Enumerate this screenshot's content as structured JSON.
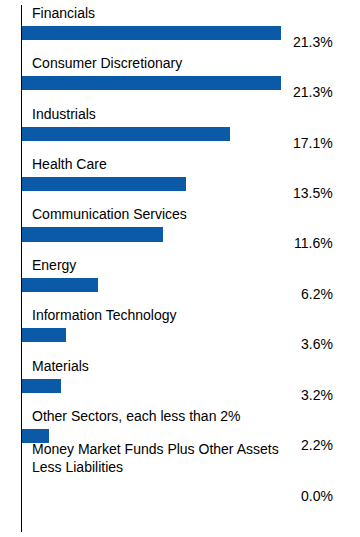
{
  "chart_data": {
    "type": "bar",
    "orientation": "horizontal",
    "categories": [
      "Financials",
      "Consumer Discretionary",
      "Industrials",
      "Health Care",
      "Communication Services",
      "Energy",
      "Information Technology",
      "Materials",
      "Other Sectors, each less than 2%",
      "Money Market Funds Plus Other Assets\nLess Liabilities"
    ],
    "values": [
      21.3,
      21.3,
      17.1,
      13.5,
      11.6,
      6.2,
      3.6,
      3.2,
      2.2,
      0.0
    ],
    "value_labels": [
      "21.3%",
      "21.3%",
      "17.1%",
      "13.5%",
      "11.6%",
      "6.2%",
      "3.6%",
      "3.2%",
      "2.2%",
      "0.0%"
    ],
    "color": "#0a5aa8",
    "xlim": [
      0,
      25.7
    ],
    "data_labels": true,
    "tick_labels": false,
    "grid": false
  }
}
